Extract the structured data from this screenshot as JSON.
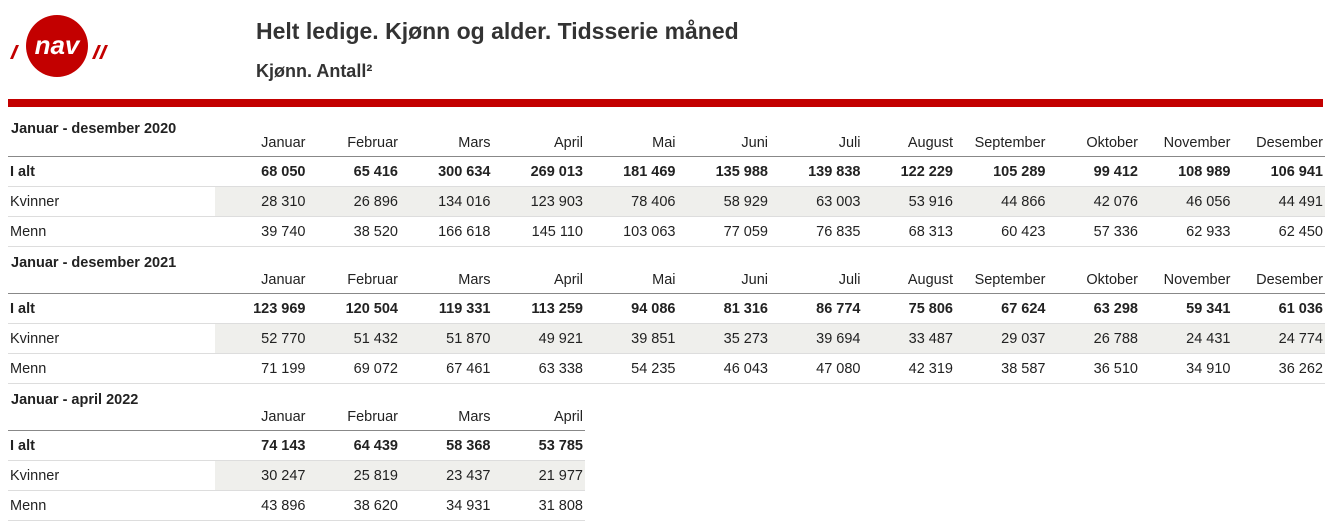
{
  "header": {
    "logo": "nav",
    "title": "Helt ledige. Kjønn og alder. Tidsserie måned",
    "subtitle": "Kjønn. Antall²"
  },
  "sections": [
    {
      "label": "Januar - desember 2020",
      "months": [
        "Januar",
        "Februar",
        "Mars",
        "April",
        "Mai",
        "Juni",
        "Juli",
        "August",
        "September",
        "Oktober",
        "November",
        "Desember"
      ],
      "rows": [
        {
          "label": "I alt",
          "values": [
            "68 050",
            "65 416",
            "300 634",
            "269 013",
            "181 469",
            "135 988",
            "139 838",
            "122 229",
            "105 289",
            "99 412",
            "108 989",
            "106 941"
          ]
        },
        {
          "label": "Kvinner",
          "values": [
            "28 310",
            "26 896",
            "134 016",
            "123 903",
            "78 406",
            "58 929",
            "63 003",
            "53 916",
            "44 866",
            "42 076",
            "46 056",
            "44 491"
          ]
        },
        {
          "label": "Menn",
          "values": [
            "39 740",
            "38 520",
            "166 618",
            "145 110",
            "103 063",
            "77 059",
            "76 835",
            "68 313",
            "60 423",
            "57 336",
            "62 933",
            "62 450"
          ]
        }
      ]
    },
    {
      "label": "Januar - desember 2021",
      "months": [
        "Januar",
        "Februar",
        "Mars",
        "April",
        "Mai",
        "Juni",
        "Juli",
        "August",
        "September",
        "Oktober",
        "November",
        "Desember"
      ],
      "rows": [
        {
          "label": "I alt",
          "values": [
            "123 969",
            "120 504",
            "119 331",
            "113 259",
            "94 086",
            "81 316",
            "86 774",
            "75 806",
            "67 624",
            "63 298",
            "59 341",
            "61 036"
          ]
        },
        {
          "label": "Kvinner",
          "values": [
            "52 770",
            "51 432",
            "51 870",
            "49 921",
            "39 851",
            "35 273",
            "39 694",
            "33 487",
            "29 037",
            "26 788",
            "24 431",
            "24 774"
          ]
        },
        {
          "label": "Menn",
          "values": [
            "71 199",
            "69 072",
            "67 461",
            "63 338",
            "54 235",
            "46 043",
            "47 080",
            "42 319",
            "38 587",
            "36 510",
            "34 910",
            "36 262"
          ]
        }
      ]
    },
    {
      "label": "Januar - april 2022",
      "months": [
        "Januar",
        "Februar",
        "Mars",
        "April"
      ],
      "rows": [
        {
          "label": "I alt",
          "values": [
            "74 143",
            "64 439",
            "58 368",
            "53 785"
          ]
        },
        {
          "label": "Kvinner",
          "values": [
            "30 247",
            "25 819",
            "23 437",
            "21 977"
          ]
        },
        {
          "label": "Menn",
          "values": [
            "43 896",
            "38 620",
            "34 931",
            "31 808"
          ]
        }
      ]
    }
  ]
}
